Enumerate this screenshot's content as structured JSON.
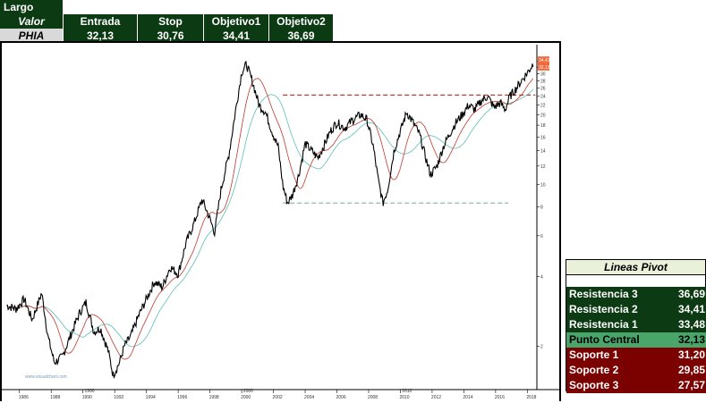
{
  "trade": {
    "direction_label": "Largo",
    "headers": [
      "Valor",
      "Entrada",
      "Stop",
      "Objetivo1",
      "Objetivo2"
    ],
    "row": [
      "PHIA",
      "32,13",
      "30,76",
      "34,41",
      "36,69"
    ]
  },
  "chart": {
    "watermark": "www.visualchart.com",
    "x_ticks": [
      "1986",
      "1988",
      "1990",
      "1992",
      "1994",
      "1996",
      "1998",
      "2000",
      "2002",
      "2004",
      "2006",
      "2008",
      "2010",
      "2012",
      "2014",
      "2016",
      "2018"
    ],
    "decade_marks": [
      "1990",
      "2000",
      "2010"
    ],
    "y_ticks": [
      "34",
      "32",
      "30",
      "28",
      "26",
      "24",
      "22",
      "20",
      "18",
      "16",
      "14",
      "12",
      "10",
      "8",
      "6",
      "4",
      "2"
    ],
    "price_tags": [
      "34,41",
      "32,13"
    ],
    "colors": {
      "price": "#000000",
      "ma_red": "#c0392b",
      "ma_teal": "#5bbfb5",
      "resistance_line": "#c0392b",
      "support_line": "#8fbfa8",
      "tag": "#f26a3b"
    }
  },
  "chart_data": {
    "type": "line",
    "scale": "log",
    "x_range": [
      1985,
      2018.6
    ],
    "y_ticks": [
      34,
      32,
      30,
      28,
      26,
      24,
      22,
      20,
      18,
      16,
      14,
      12,
      10,
      8,
      6,
      4,
      2
    ],
    "series": [
      {
        "points": [
          [
            1985.2,
            3.0
          ],
          [
            1985.8,
            2.9
          ],
          [
            1986.3,
            3.2
          ],
          [
            1986.8,
            2.6
          ],
          [
            1987.4,
            3.4
          ],
          [
            1987.8,
            2.2
          ],
          [
            1988.2,
            1.7
          ],
          [
            1988.7,
            1.8
          ],
          [
            1989.3,
            2.3
          ],
          [
            1989.8,
            2.8
          ],
          [
            1990.2,
            3.1
          ],
          [
            1990.7,
            2.3
          ],
          [
            1991.1,
            2.4
          ],
          [
            1991.6,
            1.9
          ],
          [
            1991.9,
            1.5
          ],
          [
            1992.3,
            1.7
          ],
          [
            1992.6,
            2.0
          ],
          [
            1993.0,
            2.2
          ],
          [
            1993.5,
            2.7
          ],
          [
            1994.0,
            3.2
          ],
          [
            1994.5,
            3.8
          ],
          [
            1995.0,
            3.6
          ],
          [
            1995.5,
            4.4
          ],
          [
            1996.0,
            4.1
          ],
          [
            1996.5,
            5.6
          ],
          [
            1997.0,
            6.8
          ],
          [
            1997.5,
            8.6
          ],
          [
            1997.9,
            7.4
          ],
          [
            1998.3,
            6.2
          ],
          [
            1998.7,
            9.5
          ],
          [
            1999.2,
            13.5
          ],
          [
            1999.6,
            20.5
          ],
          [
            2000.0,
            30.5
          ],
          [
            2000.3,
            33.0
          ],
          [
            2000.7,
            27.5
          ],
          [
            2001.1,
            22.0
          ],
          [
            2001.5,
            20.5
          ],
          [
            2001.9,
            17.0
          ],
          [
            2002.3,
            14.5
          ],
          [
            2002.6,
            9.8
          ],
          [
            2002.9,
            8.3
          ],
          [
            2003.2,
            9.0
          ],
          [
            2003.6,
            11.0
          ],
          [
            2004.0,
            15.0
          ],
          [
            2004.4,
            14.0
          ],
          [
            2004.8,
            13.0
          ],
          [
            2005.2,
            14.8
          ],
          [
            2005.6,
            17.0
          ],
          [
            2006.0,
            18.5
          ],
          [
            2006.5,
            17.5
          ],
          [
            2007.0,
            19.0
          ],
          [
            2007.5,
            20.0
          ],
          [
            2007.9,
            19.0
          ],
          [
            2008.3,
            14.5
          ],
          [
            2008.6,
            10.5
          ],
          [
            2008.9,
            8.3
          ],
          [
            2009.2,
            9.5
          ],
          [
            2009.6,
            14.0
          ],
          [
            2010.0,
            17.0
          ],
          [
            2010.4,
            20.5
          ],
          [
            2010.8,
            18.5
          ],
          [
            2011.2,
            16.5
          ],
          [
            2011.6,
            13.0
          ],
          [
            2011.9,
            11.0
          ],
          [
            2012.3,
            12.0
          ],
          [
            2012.7,
            14.5
          ],
          [
            2013.1,
            16.5
          ],
          [
            2013.5,
            18.5
          ],
          [
            2013.9,
            20.0
          ],
          [
            2014.3,
            22.0
          ],
          [
            2014.7,
            21.0
          ],
          [
            2015.1,
            23.0
          ],
          [
            2015.5,
            24.0
          ],
          [
            2015.9,
            21.5
          ],
          [
            2016.3,
            22.5
          ],
          [
            2016.6,
            21.0
          ],
          [
            2016.9,
            24.0
          ],
          [
            2017.3,
            26.0
          ],
          [
            2017.7,
            28.5
          ],
          [
            2018.1,
            31.0
          ],
          [
            2018.4,
            33.5
          ]
        ]
      }
    ],
    "horizontal_lines": [
      {
        "value": 24.3,
        "from": 2002.6,
        "to": 2018.5,
        "style": "dashed",
        "color": "#c0392b"
      },
      {
        "value": 8.3,
        "from": 2002.6,
        "to": 2016.8,
        "style": "dashed",
        "color": "#8fbfa8"
      }
    ]
  },
  "pivot": {
    "title": "Lineas Pivot",
    "rows": [
      {
        "name": "Resistencia 3",
        "value": "36,69",
        "kind": "res"
      },
      {
        "name": "Resistencia 2",
        "value": "34,41",
        "kind": "res"
      },
      {
        "name": "Resistencia 1",
        "value": "33,48",
        "kind": "res"
      },
      {
        "name": "Punto Central",
        "value": "32,13",
        "kind": "cen"
      },
      {
        "name": "Soporte 1",
        "value": "31,20",
        "kind": "sup"
      },
      {
        "name": "Soporte 2",
        "value": "29,85",
        "kind": "sup"
      },
      {
        "name": "Soporte 3",
        "value": "27,57",
        "kind": "sup"
      }
    ]
  }
}
